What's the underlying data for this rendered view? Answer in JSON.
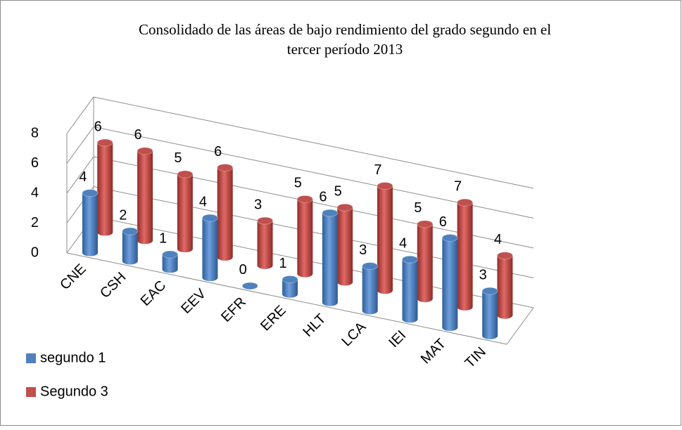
{
  "chart_data": {
    "type": "bar3d",
    "title": "Consolidado de las áreas de bajo rendimiento del grado segundo en el",
    "subtitle": "tercer período 2013",
    "categories": [
      "CNE",
      "CSH",
      "EAC",
      "EEV",
      "EFR",
      "ERE",
      "HLT",
      "LCA",
      "IEI",
      "MAT",
      "TIN"
    ],
    "series": [
      {
        "name": "segundo 1",
        "color": "#4f81bd",
        "values": [
          4,
          2,
          1,
          4,
          0,
          1,
          6,
          3,
          4,
          6,
          3
        ]
      },
      {
        "name": "Segundo 3",
        "color": "#c0504d",
        "values": [
          6,
          6,
          5,
          6,
          3,
          5,
          5,
          7,
          5,
          7,
          4
        ]
      }
    ],
    "ylim": [
      0,
      8
    ],
    "yticks": [
      0,
      2,
      4,
      6,
      8
    ],
    "grid": true,
    "legend": "bottom-left"
  }
}
